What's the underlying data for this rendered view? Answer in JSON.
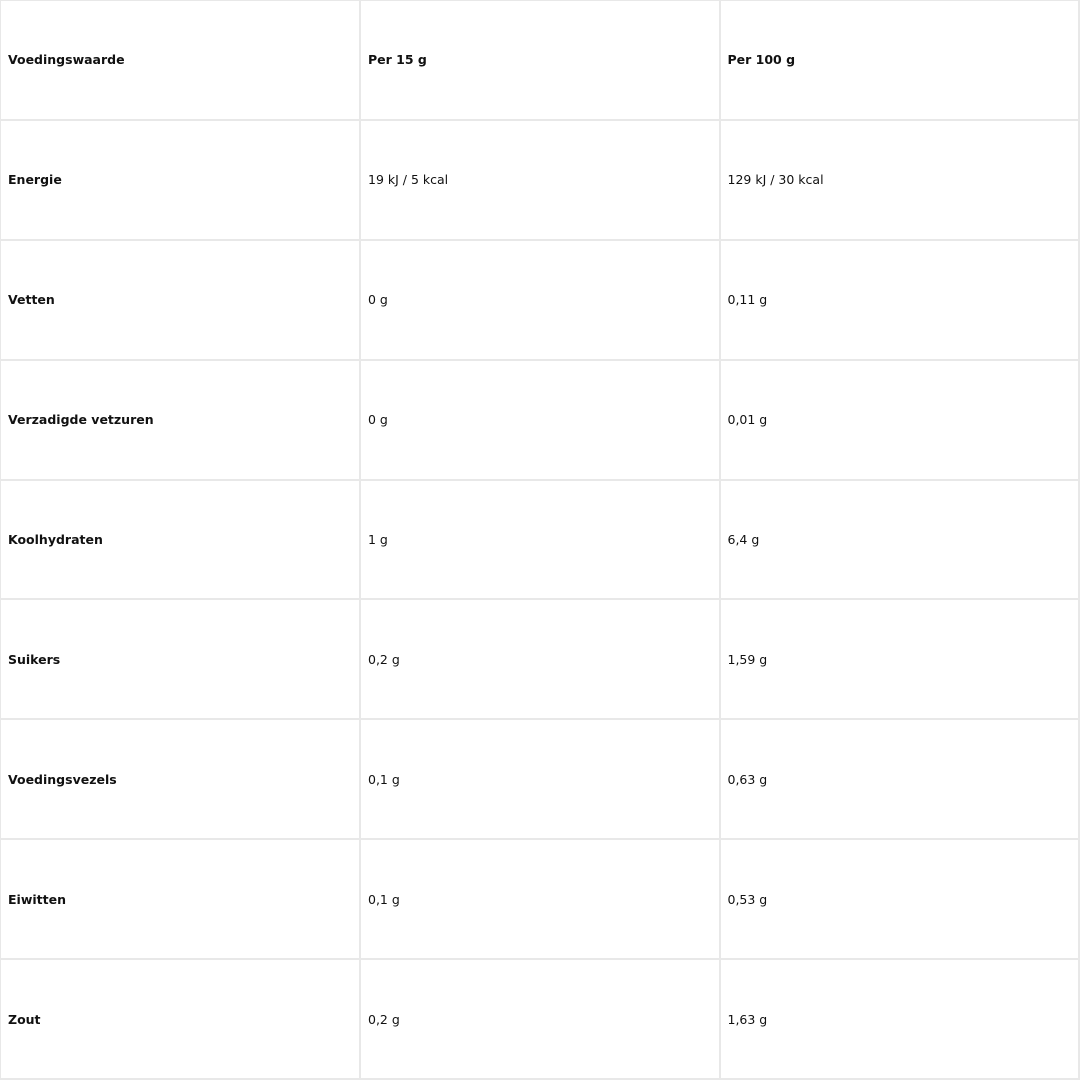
{
  "header": [
    "Voedingswaarde",
    "Per 15 g",
    "Per 100 g"
  ],
  "rows": [
    [
      "Energie",
      "19 kJ / 5 kcal",
      "129 kJ / 30 kcal"
    ],
    [
      "Vetten",
      "0 g",
      "0,11 g"
    ],
    [
      "Verzadigde vetzuren",
      "0 g",
      "0,01 g"
    ],
    [
      "Koolhydraten",
      "1 g",
      "6,4 g"
    ],
    [
      "Suikers",
      "0,2 g",
      "1,59 g"
    ],
    [
      "Voedingsvezels",
      "0,1 g",
      "0,63 g"
    ],
    [
      "Eiwitten",
      "0,1 g",
      "0,53 g"
    ],
    [
      "Zout",
      "0,2 g",
      "1,63 g"
    ]
  ]
}
